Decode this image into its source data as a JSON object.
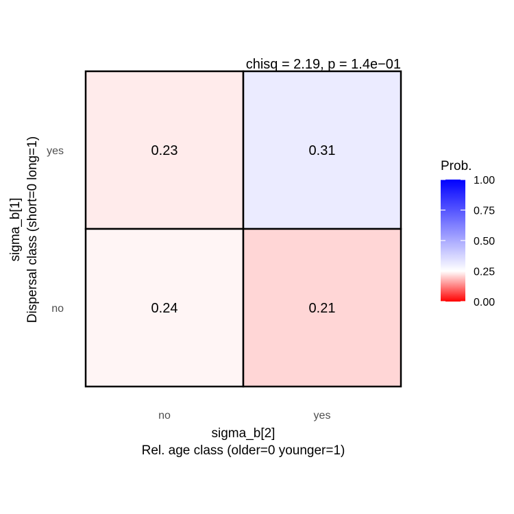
{
  "chart_data": {
    "type": "heatmap",
    "annotation": "chisq = 2.19, p = 1.4e−01",
    "x_categories": [
      "no",
      "yes"
    ],
    "y_categories": [
      "no",
      "yes"
    ],
    "xlabel_lines": [
      "sigma_b[2]",
      "Rel. age class (older=0 younger=1)"
    ],
    "ylabel_lines": [
      "sigma_b[1]",
      "Dispersal class (short=0 long=1)"
    ],
    "cells": [
      {
        "x": "no",
        "y": "yes",
        "value": 0.23,
        "label": "0.23"
      },
      {
        "x": "yes",
        "y": "yes",
        "value": 0.31,
        "label": "0.31"
      },
      {
        "x": "no",
        "y": "no",
        "value": 0.24,
        "label": "0.24"
      },
      {
        "x": "yes",
        "y": "no",
        "value": 0.21,
        "label": "0.21"
      }
    ],
    "legend": {
      "title": "Prob.",
      "range": [
        0,
        1
      ],
      "ticks": [
        0,
        0.25,
        0.5,
        0.75,
        1
      ],
      "tick_labels": [
        "0.00",
        "0.25",
        "0.50",
        "0.75",
        "1.00"
      ],
      "midpoint": 0.25,
      "colors": {
        "low": "#ff0000",
        "mid": "#ffffff",
        "high": "#0000ff"
      }
    }
  }
}
